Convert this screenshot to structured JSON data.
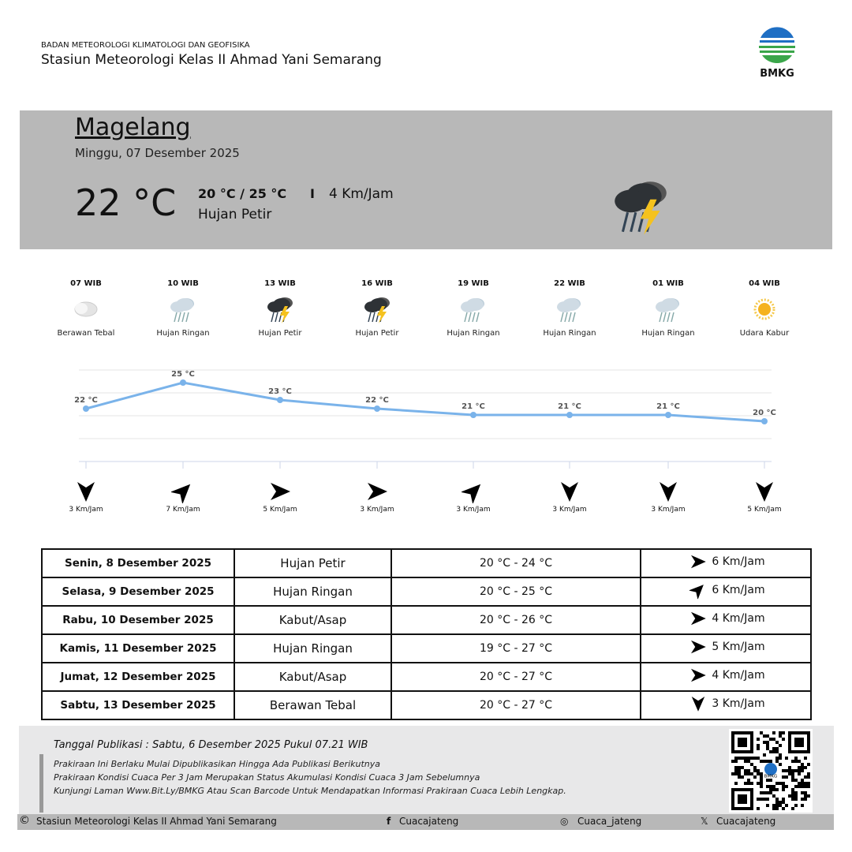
{
  "header": {
    "agency": "BADAN METEOROLOGI KLIMATOLOGI DAN GEOFISIKA",
    "station": "Stasiun Meteorologi Kelas II Ahmad Yani Semarang",
    "logo_text": "BMKG"
  },
  "current": {
    "city": "Magelang",
    "date": "Minggu, 07 Desember 2025",
    "temp": "22 °C",
    "range": "20 °C / 25 °C",
    "separator": "I",
    "wind": "4 Km/Jam",
    "condition": "Hujan Petir",
    "icon": "thunderstorm-icon"
  },
  "hourly": [
    {
      "time": "07 WIB",
      "cond": "Berawan Tebal",
      "icon": "cloudy",
      "temp": 22,
      "temp_label": "22 °C",
      "wind": "3 Km/Jam",
      "dir": 180
    },
    {
      "time": "10 WIB",
      "cond": "Hujan Ringan",
      "icon": "rain",
      "temp": 25,
      "temp_label": "25 °C",
      "wind": "7 Km/Jam",
      "dir": 45
    },
    {
      "time": "13 WIB",
      "cond": "Hujan Petir",
      "icon": "thunder",
      "temp": 23,
      "temp_label": "23 °C",
      "wind": "5 Km/Jam",
      "dir": 90
    },
    {
      "time": "16 WIB",
      "cond": "Hujan Petir",
      "icon": "thunder",
      "temp": 22,
      "temp_label": "22 °C",
      "wind": "3 Km/Jam",
      "dir": 90
    },
    {
      "time": "19 WIB",
      "cond": "Hujan Ringan",
      "icon": "rain",
      "temp": 21,
      "temp_label": "21 °C",
      "wind": "3 Km/Jam",
      "dir": 45
    },
    {
      "time": "22 WIB",
      "cond": "Hujan Ringan",
      "icon": "rain",
      "temp": 21,
      "temp_label": "21 °C",
      "wind": "3 Km/Jam",
      "dir": 180
    },
    {
      "time": "01 WIB",
      "cond": "Hujan Ringan",
      "icon": "rain",
      "temp": 21,
      "temp_label": "21 °C",
      "wind": "3 Km/Jam",
      "dir": 180
    },
    {
      "time": "04 WIB",
      "cond": "Udara Kabur",
      "icon": "haze",
      "temp": 20,
      "temp_label": "20 °C",
      "wind": "5 Km/Jam",
      "dir": 180
    }
  ],
  "colors": {
    "line": "#7ab3ea",
    "hero_bg": "#b8b8b8"
  },
  "daily": [
    {
      "day": "Senin, 8 Desember 2025",
      "cond": "Hujan Petir",
      "range": "20 °C - 24 °C",
      "wind": "6 Km/Jam",
      "dir": 90
    },
    {
      "day": "Selasa, 9 Desember 2025",
      "cond": "Hujan Ringan",
      "range": "20 °C - 25 °C",
      "wind": "6 Km/Jam",
      "dir": 45
    },
    {
      "day": "Rabu, 10 Desember 2025",
      "cond": "Kabut/Asap",
      "range": "20 °C - 26 °C",
      "wind": "4 Km/Jam",
      "dir": 90
    },
    {
      "day": "Kamis, 11 Desember 2025",
      "cond": "Hujan Ringan",
      "range": "19 °C - 27 °C",
      "wind": "5 Km/Jam",
      "dir": 90
    },
    {
      "day": "Jumat, 12 Desember 2025",
      "cond": "Kabut/Asap",
      "range": "20 °C - 27 °C",
      "wind": "4 Km/Jam",
      "dir": 90
    },
    {
      "day": "Sabtu, 13 Desember 2025",
      "cond": "Berawan Tebal",
      "range": "20 °C - 27 °C",
      "wind": "3 Km/Jam",
      "dir": 180
    }
  ],
  "footer": {
    "pub": "Tanggal Publikasi : Sabtu, 6 Desember 2025 Pukul 07.21 WIB",
    "notes": [
      "Prakiraan Ini Berlaku Mulai Dipublikasikan Hingga Ada Publikasi Berikutnya",
      "Prakiraan Kondisi Cuaca Per 3 Jam Merupakan Status Akumulasi Kondisi Cuaca 3 Jam Sebelumnya",
      "Kunjungi Laman Www.Bit.Ly/BMKG Atau Scan Barcode Untuk Mendapatkan Informasi Prakiraan Cuaca Lebih Lengkap."
    ],
    "copyright": "Stasiun Meteorologi Kelas II Ahmad Yani Semarang",
    "facebook": "Cuacajateng",
    "instagram": "Cuaca_jateng",
    "x": "Cuacajateng",
    "qr_logo": "BMKG"
  }
}
